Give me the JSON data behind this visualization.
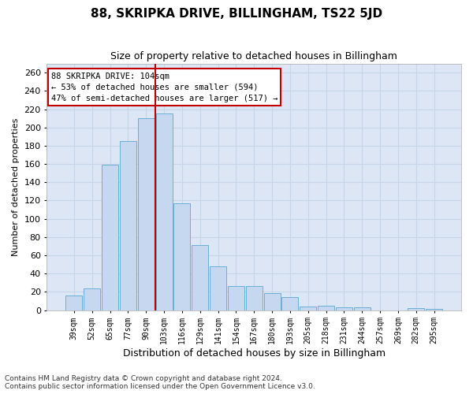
{
  "title": "88, SKRIPKA DRIVE, BILLINGHAM, TS22 5JD",
  "subtitle": "Size of property relative to detached houses in Billingham",
  "xlabel": "Distribution of detached houses by size in Billingham",
  "ylabel": "Number of detached properties",
  "bar_labels": [
    "39sqm",
    "52sqm",
    "65sqm",
    "77sqm",
    "90sqm",
    "103sqm",
    "116sqm",
    "129sqm",
    "141sqm",
    "154sqm",
    "167sqm",
    "180sqm",
    "193sqm",
    "205sqm",
    "218sqm",
    "231sqm",
    "244sqm",
    "257sqm",
    "269sqm",
    "282sqm",
    "295sqm"
  ],
  "bar_values": [
    16,
    24,
    159,
    185,
    210,
    215,
    117,
    71,
    48,
    26,
    26,
    19,
    14,
    4,
    5,
    3,
    3,
    0,
    0,
    2,
    1
  ],
  "bar_color": "#c5d8f0",
  "bar_edgecolor": "#6baed6",
  "highlight_index": 5,
  "highlight_color": "#c00000",
  "ylim": [
    0,
    270
  ],
  "yticks": [
    0,
    20,
    40,
    60,
    80,
    100,
    120,
    140,
    160,
    180,
    200,
    220,
    240,
    260
  ],
  "annotation_line1": "88 SKRIPKA DRIVE: 104sqm",
  "annotation_line2": "← 53% of detached houses are smaller (594)",
  "annotation_line3": "47% of semi-detached houses are larger (517) →",
  "annotation_box_facecolor": "#ffffff",
  "annotation_box_edgecolor": "#c00000",
  "grid_color": "#c8d4e8",
  "plot_bg_color": "#dce6f5",
  "fig_bg_color": "#ffffff",
  "footer_line1": "Contains HM Land Registry data © Crown copyright and database right 2024.",
  "footer_line2": "Contains public sector information licensed under the Open Government Licence v3.0.",
  "title_fontsize": 11,
  "subtitle_fontsize": 9,
  "ylabel_fontsize": 8,
  "xlabel_fontsize": 9,
  "tick_fontsize": 8,
  "xtick_fontsize": 7,
  "annot_fontsize": 7.5,
  "footer_fontsize": 6.5
}
